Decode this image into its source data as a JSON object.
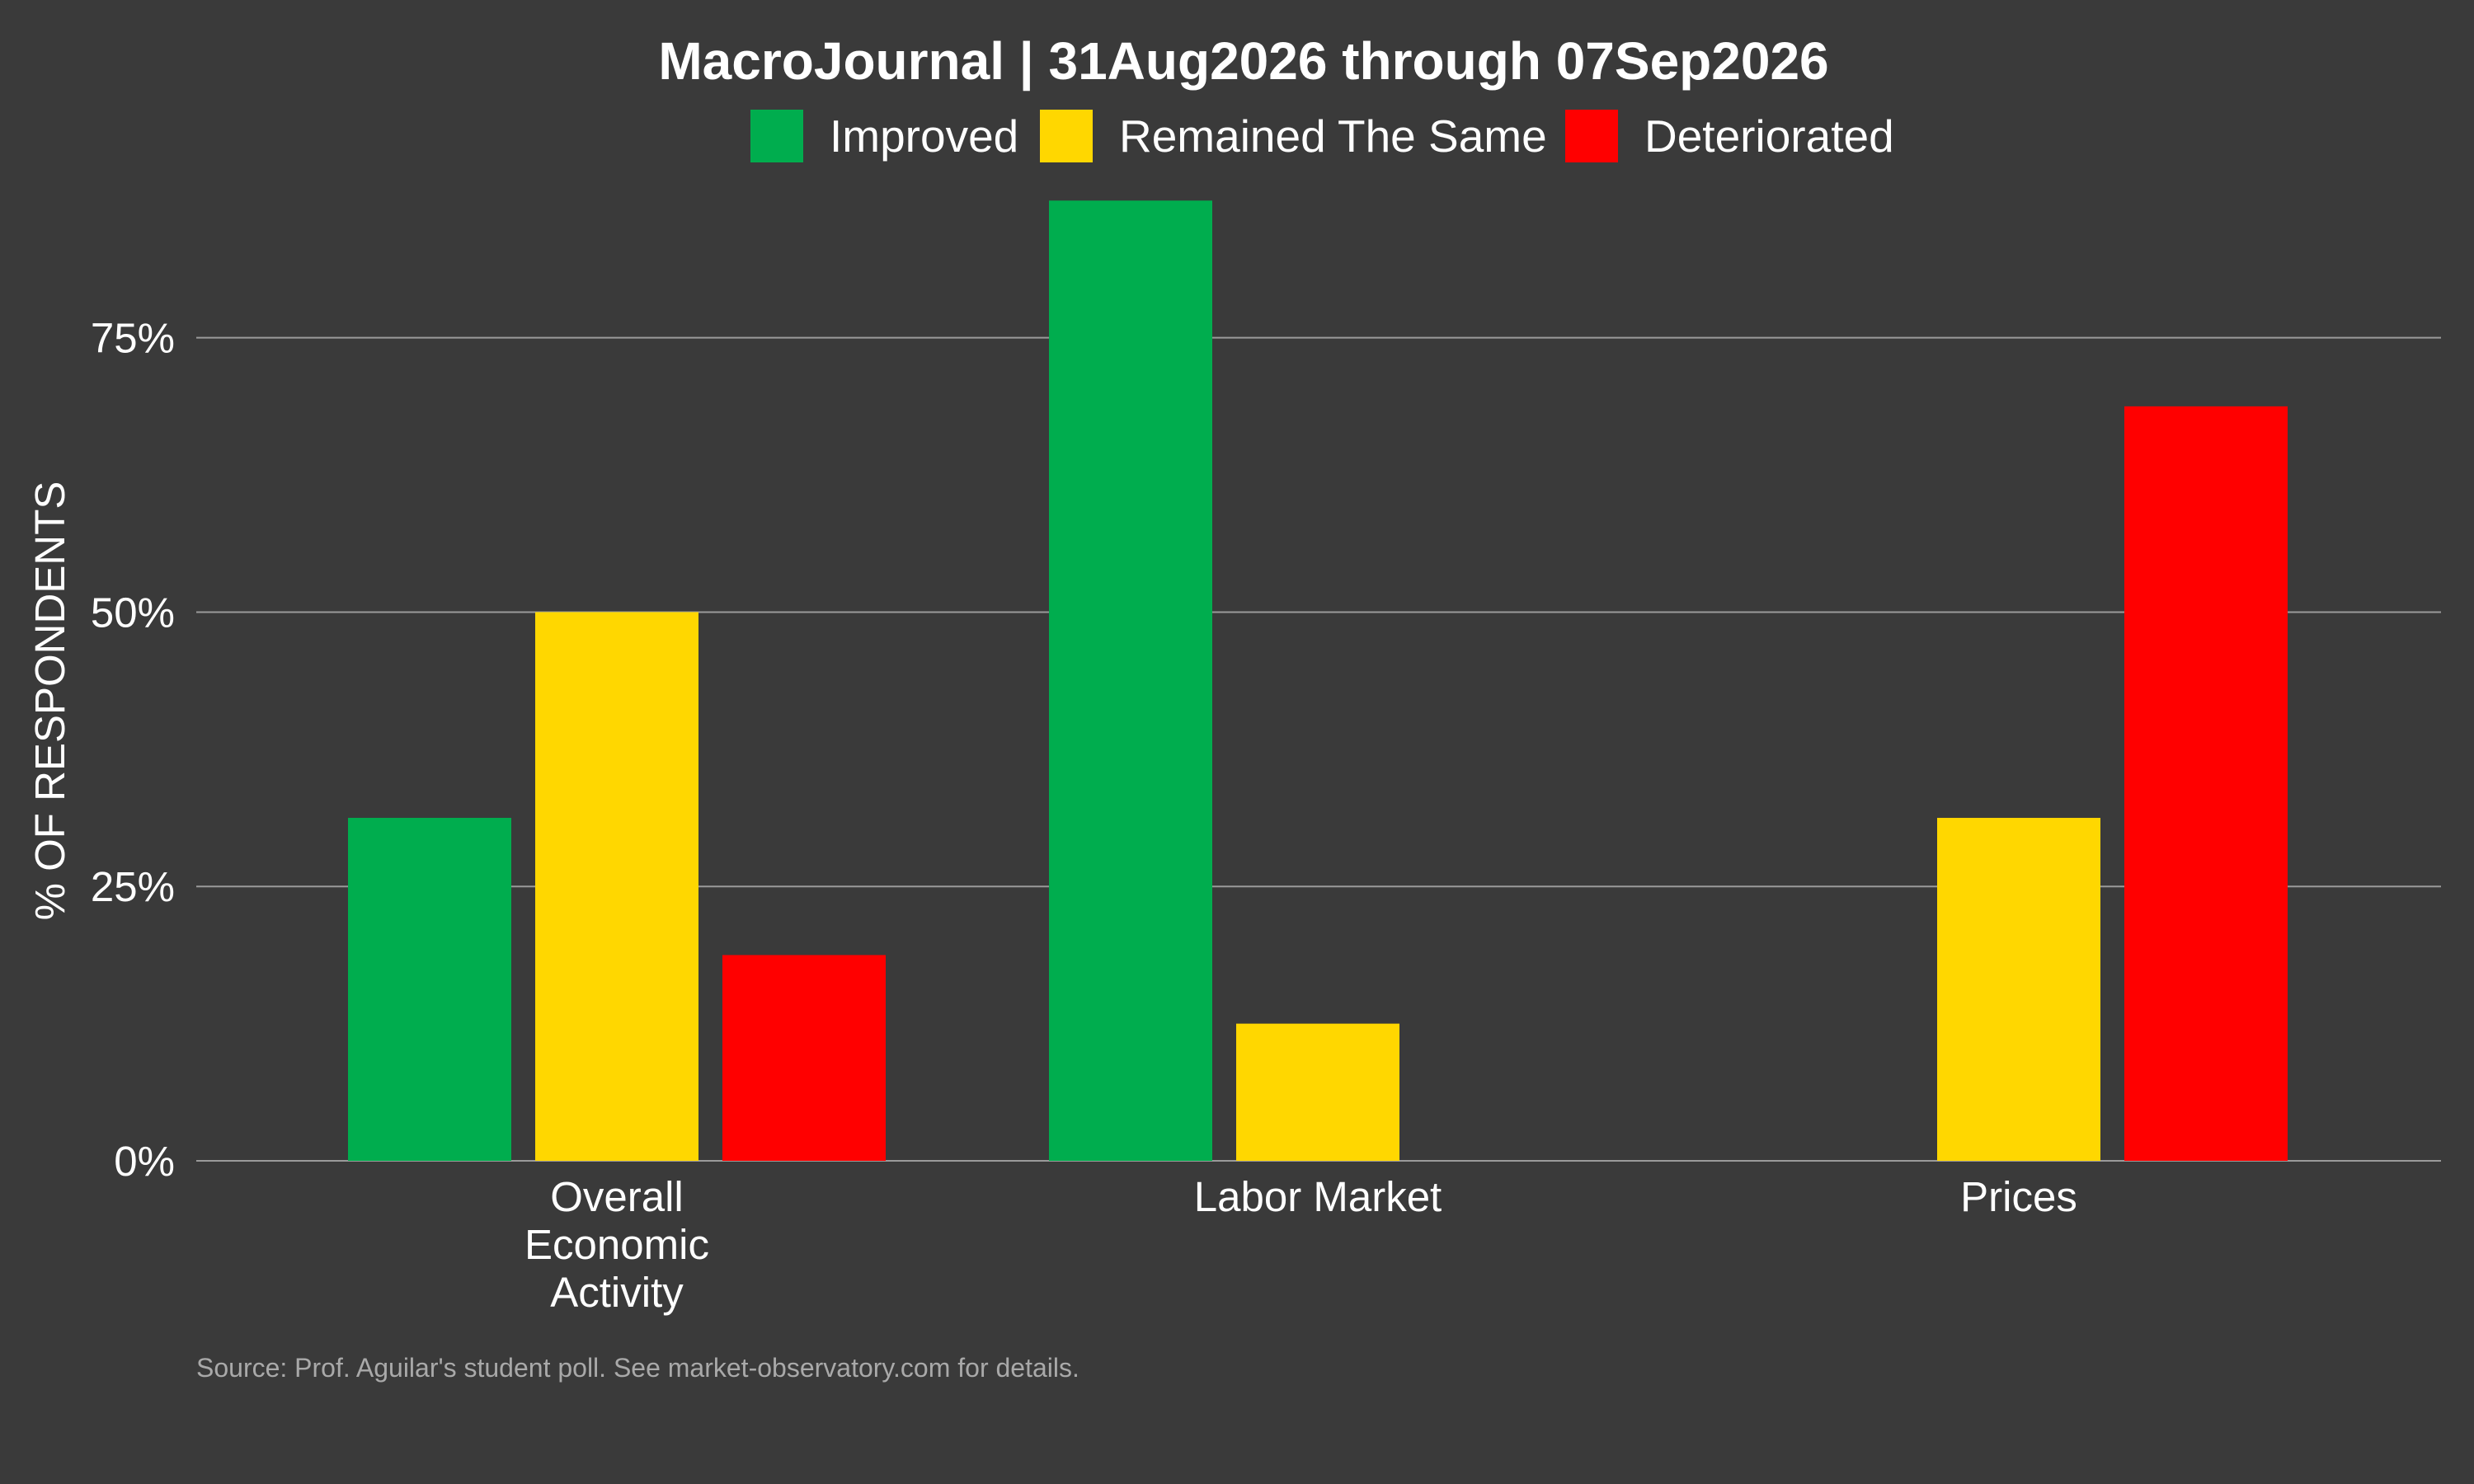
{
  "chart_data": {
    "type": "bar",
    "title": "MacroJournal | 31Aug2026 through 07Sep2026",
    "ylabel": "% OF RESPONDENTS",
    "xlabel": "",
    "categories": [
      [
        "Overall",
        "Economic",
        "Activity"
      ],
      [
        "Labor Market"
      ],
      [
        "Prices"
      ]
    ],
    "series": [
      {
        "name": "Improved",
        "color": "#00ad4e",
        "values": [
          31.25,
          87.5,
          0
        ]
      },
      {
        "name": "Remained The Same",
        "color": "#ffd700",
        "values": [
          50,
          12.5,
          31.25
        ]
      },
      {
        "name": "Deteriorated",
        "color": "#ff0000",
        "values": [
          18.75,
          0,
          68.75
        ]
      }
    ],
    "ylim": [
      0,
      90
    ],
    "yticks": [
      0,
      25,
      50,
      75
    ],
    "ytick_labels": [
      "0%",
      "25%",
      "50%",
      "75%"
    ],
    "grid": true,
    "legend_position": "top",
    "source": "Source: Prof. Aguilar's student poll.  See market-observatory.com for details."
  }
}
